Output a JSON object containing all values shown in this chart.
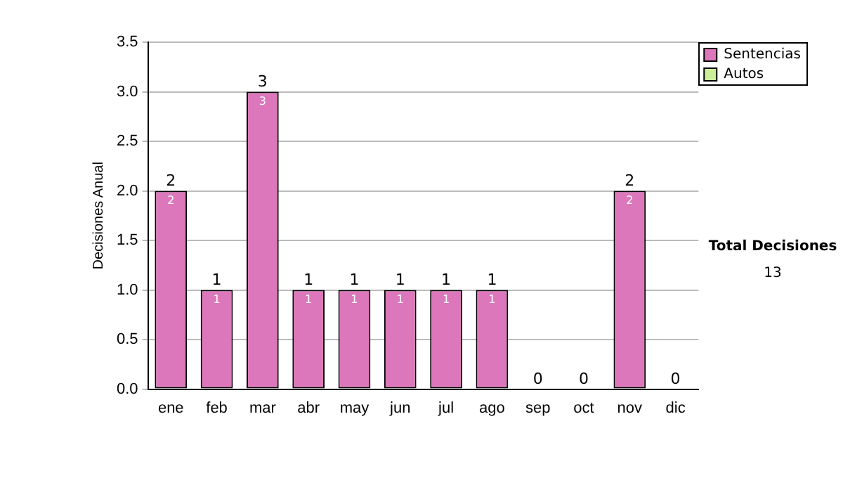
{
  "chart_data": {
    "type": "bar",
    "stacked": true,
    "ylabel": "Decisiones Anual",
    "categories": [
      "ene",
      "feb",
      "mar",
      "abr",
      "may",
      "jun",
      "jul",
      "ago",
      "sep",
      "oct",
      "nov",
      "dic"
    ],
    "series": [
      {
        "name": "Sentencias",
        "color": "#dd77bb",
        "values": [
          2,
          1,
          3,
          1,
          1,
          1,
          1,
          1,
          0,
          0,
          2,
          0
        ],
        "value_labels": [
          "2",
          "1",
          "3",
          "1",
          "1",
          "1",
          "1",
          "1",
          null,
          null,
          "2",
          null
        ]
      },
      {
        "name": "Autos",
        "color": "#ccee99",
        "values": [
          0,
          0,
          0,
          0,
          0,
          0,
          0,
          0,
          0,
          0,
          0,
          0
        ]
      }
    ],
    "totals": [
      "2",
      "1",
      "3",
      "1",
      "1",
      "1",
      "1",
      "1",
      "0",
      "0",
      "2",
      "0"
    ],
    "ylim": [
      0,
      3.5
    ],
    "yticks": [
      {
        "value": 0,
        "label": "0.0"
      },
      {
        "value": 0.5,
        "label": "0.5"
      },
      {
        "value": 1,
        "label": "1.0"
      },
      {
        "value": 1.5,
        "label": "1.5"
      },
      {
        "value": 2,
        "label": "2.0"
      },
      {
        "value": 2.5,
        "label": "2.5"
      },
      {
        "value": 3,
        "label": "3.0"
      },
      {
        "value": 3.5,
        "label": "3.5"
      }
    ],
    "grid": "y",
    "legend": "right",
    "annotations": [
      "Total Decisiones",
      "13"
    ]
  }
}
